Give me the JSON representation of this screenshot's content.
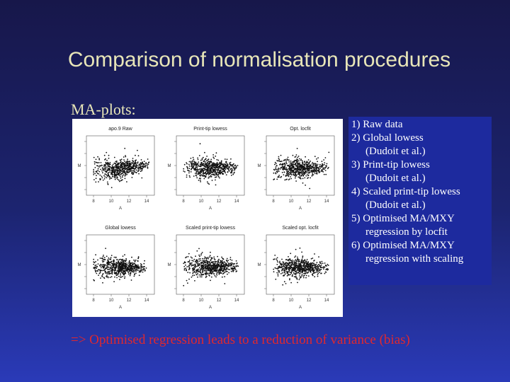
{
  "slide": {
    "title": "Comparison of normalisation procedures",
    "subtitle": "MA-plots:",
    "conclusion": "=> Optimised regression leads to a reduction of variance (bias)"
  },
  "figure": {
    "panels": [
      {
        "title": "apo.9 Raw",
        "xticks": [
          "8",
          "10",
          "12",
          "14"
        ]
      },
      {
        "title": "Print-tip lowess",
        "xticks": [
          "8",
          "10",
          "12",
          "14"
        ]
      },
      {
        "title": "Opt. locfit",
        "xticks": [
          "8",
          "10",
          "12",
          "14"
        ]
      },
      {
        "title": "Global lowess",
        "xticks": [
          "8",
          "10",
          "12",
          "14"
        ]
      },
      {
        "title": "Scaled print-tip lowess",
        "xticks": [
          "8",
          "10",
          "12",
          "14"
        ]
      },
      {
        "title": "Scaled opt. locfit",
        "xticks": [
          "8",
          "10",
          "12",
          "14"
        ]
      }
    ],
    "xlabel": "A",
    "ylabel": "M"
  },
  "legend": [
    {
      "text": "1) Raw data",
      "indent": false
    },
    {
      "text": "2) Global lowess",
      "indent": false
    },
    {
      "text": "(Dudoit et al.)",
      "indent": true
    },
    {
      "text": "3) Print-tip lowess",
      "indent": false
    },
    {
      "text": "(Dudoit et al.)",
      "indent": true
    },
    {
      "text": "4) Scaled print-tip lowess",
      "indent": false
    },
    {
      "text": "(Dudoit et al.)",
      "indent": true
    },
    {
      "text": "5) Optimised MA/MXY",
      "indent": false
    },
    {
      "text": "regression by locfit",
      "indent": true
    },
    {
      "text": "6) Optimised MA/MXY",
      "indent": false
    },
    {
      "text": "regression with scaling",
      "indent": true
    }
  ]
}
